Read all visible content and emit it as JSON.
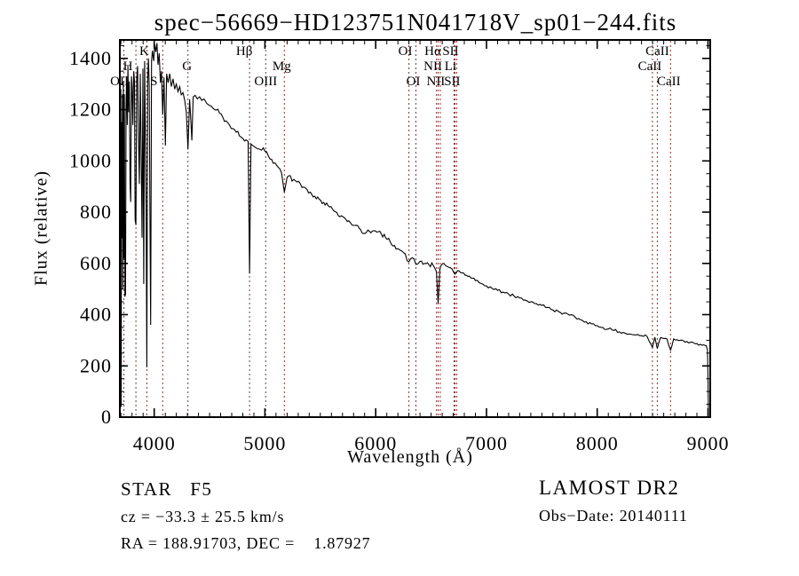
{
  "title": "spec−56669−HD123751N041718V_sp01−244.fits",
  "footer": {
    "class_label": "STAR   F5",
    "survey": "LAMOST DR2",
    "cz": "cz = −33.3 ± 25.5 km/s",
    "obs_date": "Obs−Date: 20140111",
    "radec": "RA = 188.91703, DEC =    1.87927"
  },
  "colors": {
    "background": "#ffffff",
    "spectrum": "#000000",
    "axis": "#000000",
    "line_marker": "#843434"
  },
  "chart_data": {
    "type": "line",
    "title": "spec−56669−HD123751N041718V_sp01−244.fits",
    "xlabel": "Wavelength (Å)",
    "ylabel": "Flux (relative)",
    "xlim": [
      3690,
      9020
    ],
    "ylim": [
      0,
      1472
    ],
    "x_ticks": [
      4000,
      5000,
      6000,
      7000,
      8000,
      9000
    ],
    "y_ticks": [
      0,
      200,
      400,
      600,
      800,
      1000,
      1200,
      1400
    ],
    "x_minor_step": 100,
    "y_minor_step": 50,
    "grid": false,
    "legend": "none",
    "spectral_lines": [
      {
        "label": "OII",
        "wavelength": 3727,
        "row": 3,
        "dx": -5
      },
      {
        "label": "H",
        "wavelength": 3835,
        "row": 2,
        "dx": -9
      },
      {
        "label": "K",
        "wavelength": 3934,
        "row": 1,
        "dx": -3
      },
      {
        "label": "S",
        "wavelength": 4077,
        "row": 3,
        "dx": -10
      },
      {
        "label": "G",
        "wavelength": 4305,
        "row": 2,
        "dx": -1
      },
      {
        "label": "Hβ",
        "wavelength": 4861,
        "row": 1,
        "dx": -6
      },
      {
        "label": "OIII",
        "wavelength": 5007,
        "row": 3,
        "dx": 0
      },
      {
        "label": "Mg",
        "wavelength": 5175,
        "row": 2,
        "dx": -3
      },
      {
        "label": "OI",
        "wavelength": 6300,
        "row": 1,
        "dx": -4
      },
      {
        "label": "OI",
        "wavelength": 6363,
        "row": 3,
        "dx": -3
      },
      {
        "label": "NII",
        "wavelength": 6548,
        "row": 2,
        "dx": -4
      },
      {
        "label": "Hα",
        "wavelength": 6563,
        "row": 1,
        "dx": -6
      },
      {
        "label": "NII",
        "wavelength": 6583,
        "row": 3,
        "dx": -5
      },
      {
        "label": "Li",
        "wavelength": 6707,
        "row": 2,
        "dx": -4
      },
      {
        "label": "SII",
        "wavelength": 6716,
        "row": 1,
        "dx": -5
      },
      {
        "label": "SII",
        "wavelength": 6731,
        "row": 3,
        "dx": -5
      },
      {
        "label": "CaII",
        "wavelength": 8498,
        "row": 2,
        "dx": -3
      },
      {
        "label": "CaII",
        "wavelength": 8542,
        "row": 1,
        "dx": 0
      },
      {
        "label": "CaII",
        "wavelength": 8662,
        "row": 3,
        "dx": -2
      }
    ],
    "noise_zones": [
      {
        "to": 4450,
        "amp": 40
      },
      {
        "to": 5250,
        "amp": 14
      },
      {
        "to": 6600,
        "amp": 9
      },
      {
        "to": 9020,
        "amp": 6
      }
    ],
    "series": [
      {
        "name": "spectrum",
        "points": [
          [
            3696,
            900
          ],
          [
            3699,
            1280
          ],
          [
            3702,
            40
          ],
          [
            3705,
            1150
          ],
          [
            3709,
            700
          ],
          [
            3713,
            1260
          ],
          [
            3717,
            500
          ],
          [
            3721,
            1310
          ],
          [
            3727,
            620
          ],
          [
            3731,
            1260
          ],
          [
            3736,
            470
          ],
          [
            3741,
            480
          ],
          [
            3746,
            1210
          ],
          [
            3751,
            1330
          ],
          [
            3757,
            1140
          ],
          [
            3763,
            1370
          ],
          [
            3769,
            1190
          ],
          [
            3776,
            1310
          ],
          [
            3782,
            910
          ],
          [
            3788,
            840
          ],
          [
            3795,
            1330
          ],
          [
            3801,
            1290
          ],
          [
            3808,
            1140
          ],
          [
            3815,
            1350
          ],
          [
            3822,
            1310
          ],
          [
            3828,
            770
          ],
          [
            3835,
            750
          ],
          [
            3842,
            1320
          ],
          [
            3850,
            1370
          ],
          [
            3858,
            1090
          ],
          [
            3866,
            910
          ],
          [
            3874,
            1340
          ],
          [
            3882,
            1040
          ],
          [
            3890,
            700
          ],
          [
            3898,
            1360
          ],
          [
            3906,
            520
          ],
          [
            3914,
            1390
          ],
          [
            3921,
            1090
          ],
          [
            3927,
            800
          ],
          [
            3934,
            195
          ],
          [
            3941,
            1310
          ],
          [
            3948,
            1400
          ],
          [
            3955,
            1290
          ],
          [
            3962,
            790
          ],
          [
            3968,
            360
          ],
          [
            3976,
            1390
          ],
          [
            3984,
            1430
          ],
          [
            3995,
            1390
          ],
          [
            4005,
            1455
          ],
          [
            4015,
            1425
          ],
          [
            4025,
            1460
          ],
          [
            4035,
            1375
          ],
          [
            4045,
            1420
          ],
          [
            4056,
            1305
          ],
          [
            4066,
            1350
          ],
          [
            4077,
            1180
          ],
          [
            4088,
            1325
          ],
          [
            4101,
            1060
          ],
          [
            4112,
            1340
          ],
          [
            4126,
            1305
          ],
          [
            4140,
            1340
          ],
          [
            4155,
            1290
          ],
          [
            4170,
            1320
          ],
          [
            4185,
            1280
          ],
          [
            4200,
            1300
          ],
          [
            4215,
            1270
          ],
          [
            4230,
            1290
          ],
          [
            4245,
            1258
          ],
          [
            4260,
            1266
          ],
          [
            4275,
            1238
          ],
          [
            4290,
            1190
          ],
          [
            4305,
            1045
          ],
          [
            4320,
            1240
          ],
          [
            4332,
            1150
          ],
          [
            4340,
            1080
          ],
          [
            4352,
            1250
          ],
          [
            4370,
            1256
          ],
          [
            4390,
            1242
          ],
          [
            4410,
            1250
          ],
          [
            4430,
            1236
          ],
          [
            4450,
            1242
          ],
          [
            4475,
            1224
          ],
          [
            4500,
            1216
          ],
          [
            4530,
            1206
          ],
          [
            4560,
            1198
          ],
          [
            4590,
            1186
          ],
          [
            4620,
            1170
          ],
          [
            4650,
            1156
          ],
          [
            4680,
            1140
          ],
          [
            4710,
            1126
          ],
          [
            4740,
            1112
          ],
          [
            4770,
            1098
          ],
          [
            4800,
            1088
          ],
          [
            4830,
            1082
          ],
          [
            4848,
            1076
          ],
          [
            4861,
            560
          ],
          [
            4874,
            1066
          ],
          [
            4890,
            1060
          ],
          [
            4910,
            1054
          ],
          [
            4930,
            1048
          ],
          [
            4950,
            1046
          ],
          [
            4970,
            1042
          ],
          [
            5000,
            1038
          ],
          [
            5030,
            1020
          ],
          [
            5060,
            1006
          ],
          [
            5090,
            992
          ],
          [
            5120,
            975
          ],
          [
            5150,
            952
          ],
          [
            5175,
            878
          ],
          [
            5200,
            936
          ],
          [
            5230,
            942
          ],
          [
            5260,
            928
          ],
          [
            5290,
            918
          ],
          [
            5320,
            910
          ],
          [
            5350,
            898
          ],
          [
            5380,
            888
          ],
          [
            5410,
            878
          ],
          [
            5450,
            862
          ],
          [
            5490,
            850
          ],
          [
            5530,
            838
          ],
          [
            5570,
            825
          ],
          [
            5610,
            812
          ],
          [
            5650,
            798
          ],
          [
            5690,
            786
          ],
          [
            5730,
            772
          ],
          [
            5770,
            760
          ],
          [
            5810,
            748
          ],
          [
            5850,
            738
          ],
          [
            5893,
            716
          ],
          [
            5930,
            730
          ],
          [
            5970,
            726
          ],
          [
            6010,
            722
          ],
          [
            6050,
            716
          ],
          [
            6090,
            700
          ],
          [
            6130,
            685
          ],
          [
            6170,
            670
          ],
          [
            6210,
            655
          ],
          [
            6250,
            642
          ],
          [
            6300,
            606
          ],
          [
            6330,
            622
          ],
          [
            6363,
            596
          ],
          [
            6400,
            608
          ],
          [
            6440,
            600
          ],
          [
            6480,
            595
          ],
          [
            6520,
            592
          ],
          [
            6548,
            568
          ],
          [
            6563,
            443
          ],
          [
            6580,
            584
          ],
          [
            6600,
            598
          ],
          [
            6630,
            592
          ],
          [
            6660,
            585
          ],
          [
            6690,
            578
          ],
          [
            6716,
            558
          ],
          [
            6740,
            572
          ],
          [
            6780,
            563
          ],
          [
            6820,
            553
          ],
          [
            6860,
            543
          ],
          [
            6900,
            533
          ],
          [
            6950,
            522
          ],
          [
            7000,
            512
          ],
          [
            7050,
            503
          ],
          [
            7100,
            495
          ],
          [
            7150,
            488
          ],
          [
            7200,
            480
          ],
          [
            7250,
            472
          ],
          [
            7300,
            465
          ],
          [
            7350,
            457
          ],
          [
            7400,
            450
          ],
          [
            7450,
            443
          ],
          [
            7500,
            436
          ],
          [
            7550,
            428
          ],
          [
            7600,
            418
          ],
          [
            7650,
            412
          ],
          [
            7700,
            406
          ],
          [
            7750,
            398
          ],
          [
            7800,
            390
          ],
          [
            7850,
            380
          ],
          [
            7900,
            372
          ],
          [
            7950,
            364
          ],
          [
            8000,
            357
          ],
          [
            8050,
            350
          ],
          [
            8100,
            344
          ],
          [
            8150,
            338
          ],
          [
            8200,
            333
          ],
          [
            8250,
            328
          ],
          [
            8300,
            324
          ],
          [
            8350,
            321
          ],
          [
            8400,
            318
          ],
          [
            8450,
            315
          ],
          [
            8498,
            272
          ],
          [
            8520,
            312
          ],
          [
            8542,
            268
          ],
          [
            8570,
            310
          ],
          [
            8600,
            307
          ],
          [
            8630,
            305
          ],
          [
            8662,
            262
          ],
          [
            8690,
            305
          ],
          [
            8720,
            302
          ],
          [
            8750,
            300
          ],
          [
            8780,
            297
          ],
          [
            8810,
            295
          ],
          [
            8840,
            292
          ],
          [
            8870,
            290
          ],
          [
            8900,
            287
          ],
          [
            8930,
            284
          ],
          [
            8960,
            282
          ],
          [
            8985,
            278
          ],
          [
            8995,
            262
          ],
          [
            9000,
            150
          ],
          [
            9004,
            5
          ]
        ]
      }
    ]
  }
}
